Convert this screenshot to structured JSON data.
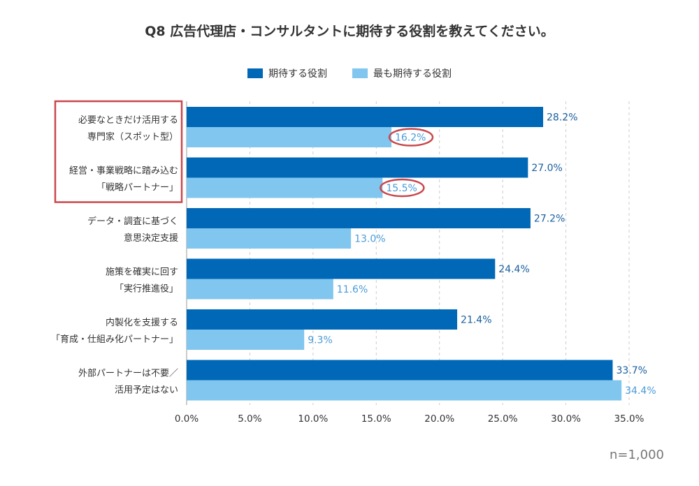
{
  "chart_data": {
    "type": "bar",
    "orientation": "horizontal",
    "title": "Q8 広告代理店・コンサルタントに期待する役割を教えてください。",
    "categories": [
      [
        "必要なときだけ活用する",
        "専門家（スポット型）"
      ],
      [
        "経営・事業戦略に踏み込む",
        "「戦略パートナー」"
      ],
      [
        "データ・調査に基づく",
        "意思決定支援"
      ],
      [
        "施策を確実に回す",
        "「実行推進役」"
      ],
      [
        "内製化を支援する",
        "「育成・仕組み化パートナー」"
      ],
      [
        "外部パートナーは不要／",
        "活用予定はない"
      ]
    ],
    "series": [
      {
        "name": "期待する役割",
        "color": "#0068b7",
        "values": [
          28.2,
          27.0,
          27.2,
          24.4,
          21.4,
          33.7
        ]
      },
      {
        "name": "最も期待する役割",
        "color": "#80c6ee",
        "values": [
          16.2,
          15.5,
          13.0,
          11.6,
          9.3,
          34.4
        ]
      }
    ],
    "value_labels": [
      [
        "28.2%",
        "27.0%",
        "27.2%",
        "24.4%",
        "21.4%",
        "33.7%"
      ],
      [
        "16.2%",
        "15.5%",
        "13.0%",
        "11.6%",
        "9.3%",
        "34.4%"
      ]
    ],
    "xlim": [
      0,
      35
    ],
    "xticks": [
      0,
      5,
      10,
      15,
      20,
      25,
      30,
      35
    ],
    "xtick_labels": [
      "0.0%",
      "5.0%",
      "10.0%",
      "15.0%",
      "20.0%",
      "25.0%",
      "30.0%",
      "35.0%"
    ],
    "grid": "vertical dashed",
    "legend_position": "top-center",
    "highlighted_categories": [
      0,
      1
    ],
    "circled_values": [
      [
        1,
        0
      ],
      [
        1,
        1
      ]
    ]
  },
  "note": "n=1,000"
}
